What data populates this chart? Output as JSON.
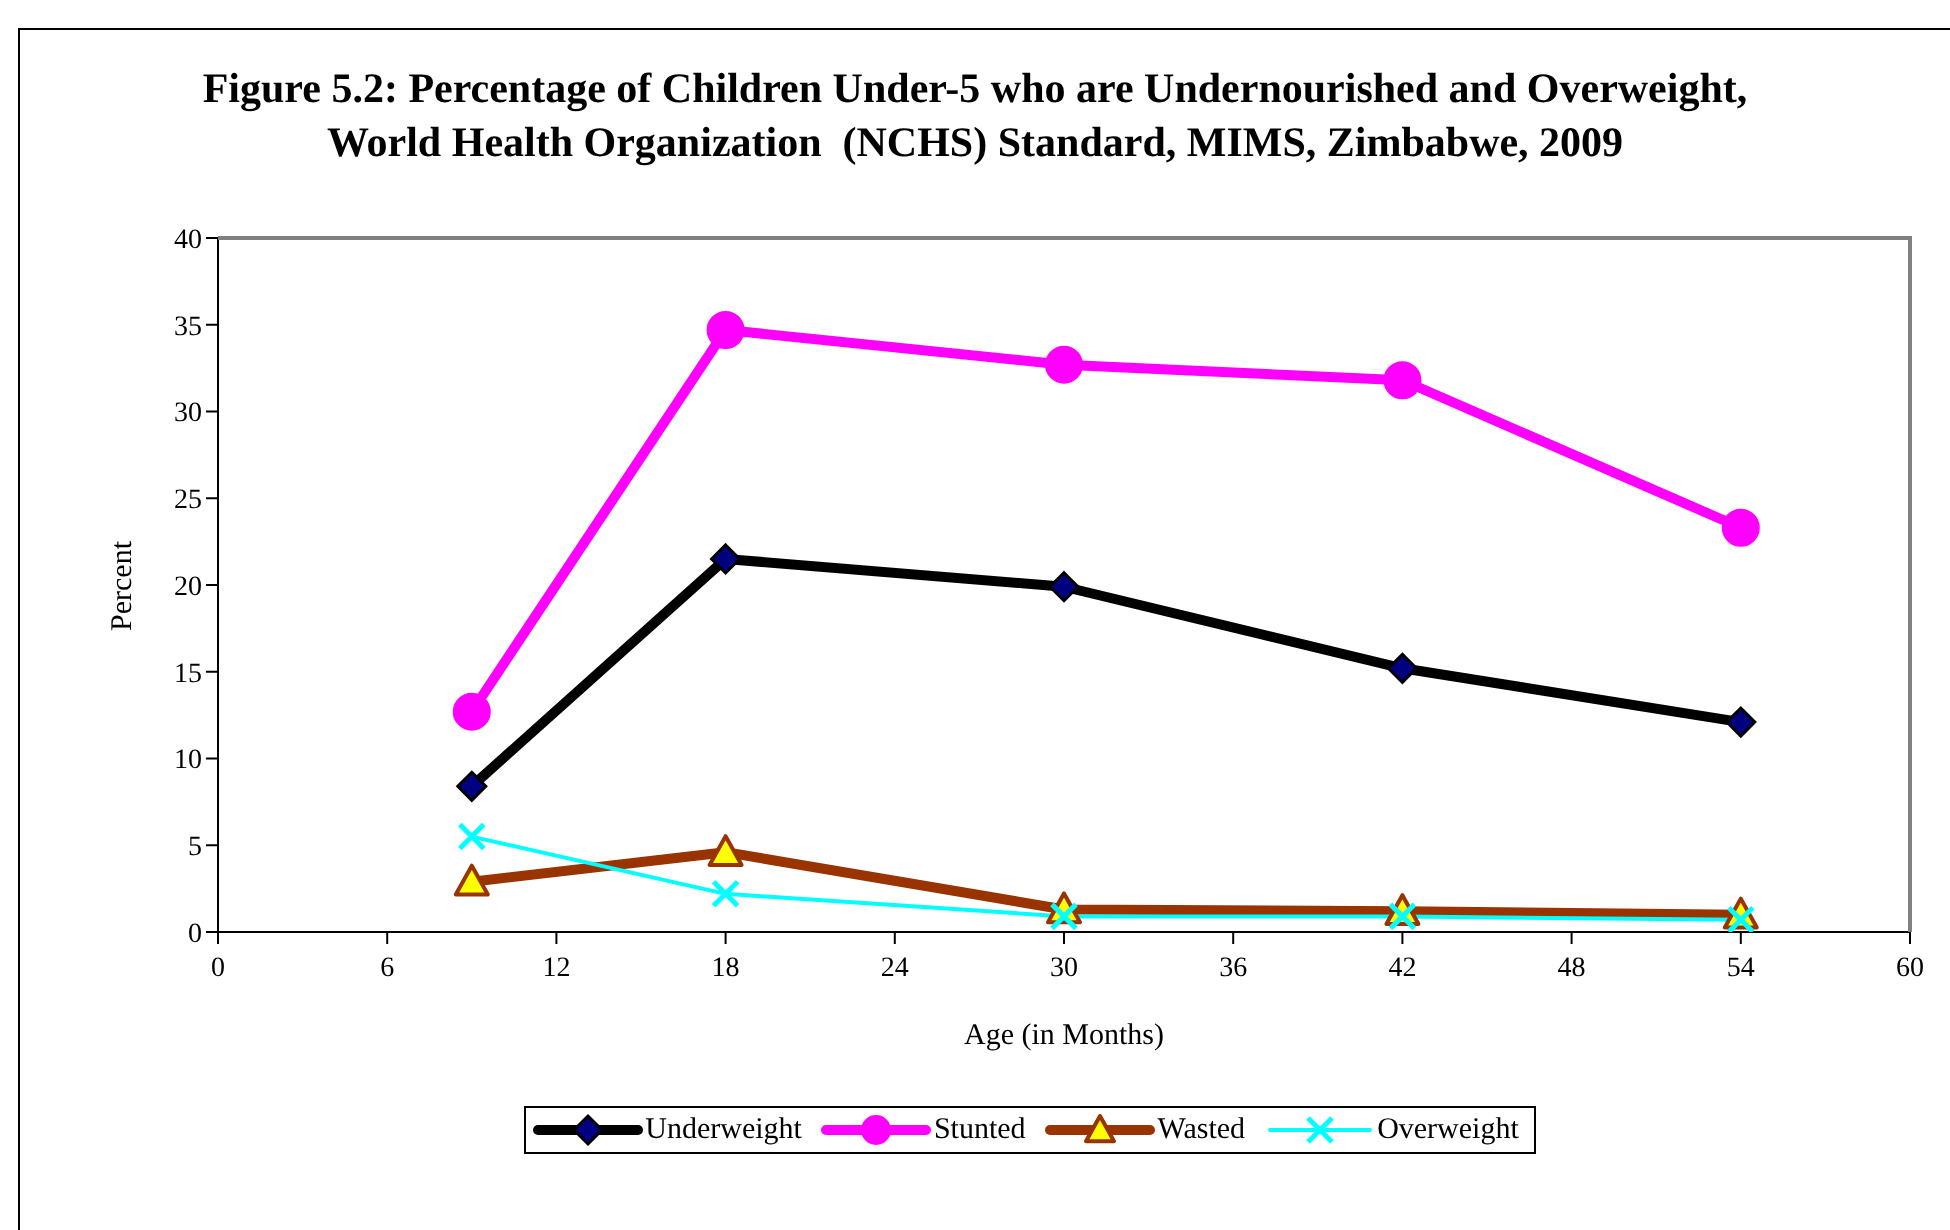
{
  "chart_data": {
    "type": "line",
    "title": "Figure 5.2: Percentage of Children Under-5 who are Undernourished and Overweight,\nWorld Health Organization  (NCHS) Standard, MIMS, Zimbabwe, 2009",
    "xlabel": "Age (in Months)",
    "ylabel": "Percent",
    "x": [
      9,
      18,
      30,
      42,
      54
    ],
    "series": [
      {
        "name": "Underweight",
        "color": "#000000",
        "marker": "diamond",
        "values": [
          8.4,
          21.5,
          19.9,
          15.2,
          12.1
        ]
      },
      {
        "name": "Stunted",
        "color": "#ff00ff",
        "marker": "circle",
        "values": [
          12.7,
          34.7,
          32.7,
          31.8,
          23.3
        ]
      },
      {
        "name": "Wasted",
        "color": "#993300",
        "marker": "triangle",
        "values": [
          2.9,
          4.6,
          1.3,
          1.2,
          1.0
        ]
      },
      {
        "name": "Overweight",
        "color": "#00ffff",
        "marker": "cross",
        "values": [
          5.5,
          2.2,
          0.9,
          0.9,
          0.7
        ]
      }
    ],
    "xlim": [
      0,
      60
    ],
    "xticks": [
      0,
      6,
      12,
      18,
      24,
      30,
      36,
      42,
      48,
      54,
      60
    ],
    "ylim": [
      0,
      40
    ],
    "yticks": [
      0,
      5,
      10,
      15,
      20,
      25,
      30,
      35,
      40
    ],
    "legend": "bottom"
  }
}
